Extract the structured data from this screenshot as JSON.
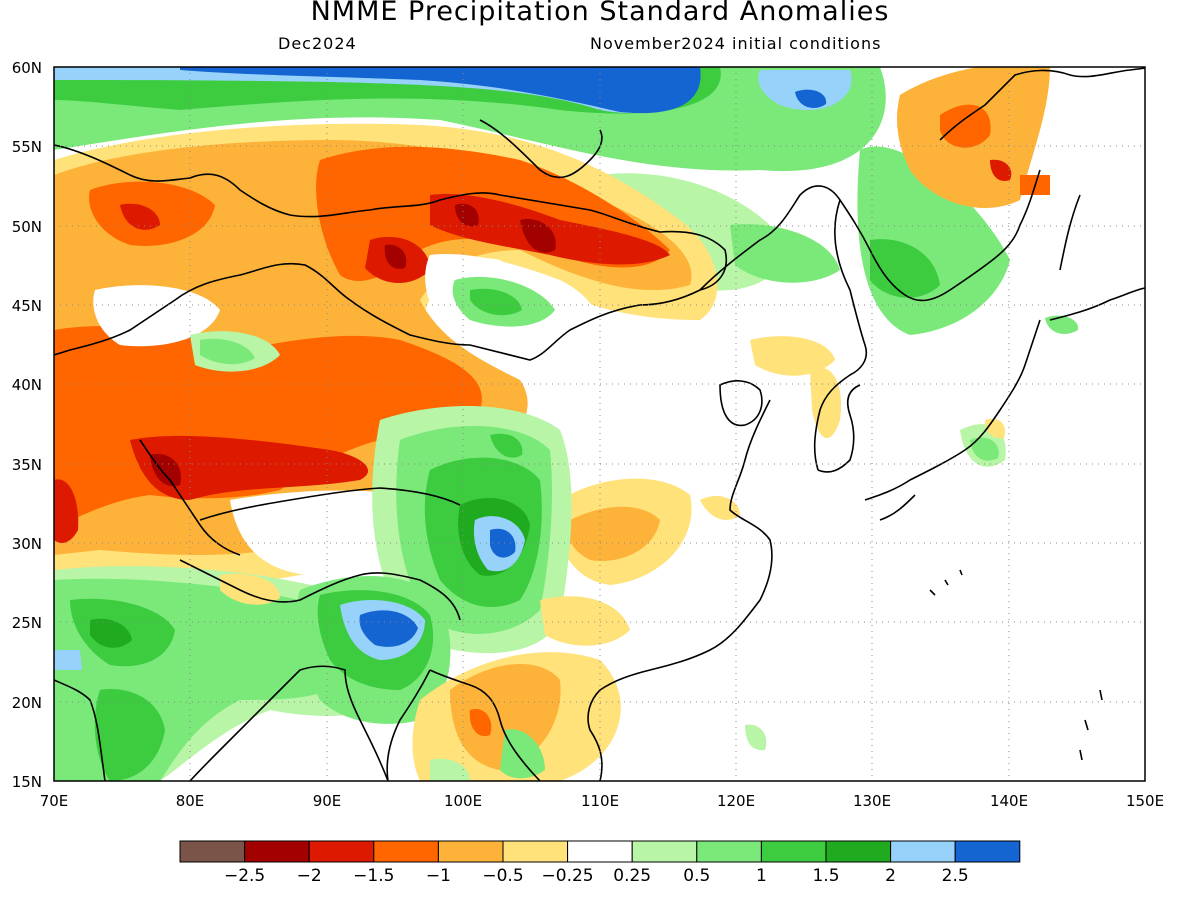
{
  "title": "NMME Precipitation Standard Anomalies",
  "subtitle_left": "Dec2024",
  "subtitle_right": "November2024 initial conditions",
  "axes": {
    "lat_labels": [
      "60N",
      "55N",
      "50N",
      "45N",
      "40N",
      "35N",
      "30N",
      "25N",
      "20N",
      "15N"
    ],
    "lon_labels": [
      "70E",
      "80E",
      "90E",
      "100E",
      "110E",
      "120E",
      "130E",
      "140E",
      "150E"
    ],
    "lat_range": [
      15,
      60
    ],
    "lon_range": [
      70,
      150
    ]
  },
  "colorbar": {
    "colors": [
      "#7a5448",
      "#a30000",
      "#dd1a00",
      "#ff6600",
      "#fdb33a",
      "#ffe27a",
      "#ffffff",
      "#b8f5a6",
      "#7ae97a",
      "#3dcc40",
      "#1faa1f",
      "#96d2fa",
      "#1464d2"
    ],
    "labels": [
      "−2.5",
      "−2",
      "−1.5",
      "−1",
      "−0.5",
      "−0.25",
      "0.25",
      "0.5",
      "1",
      "1.5",
      "2",
      "2.5"
    ]
  }
}
